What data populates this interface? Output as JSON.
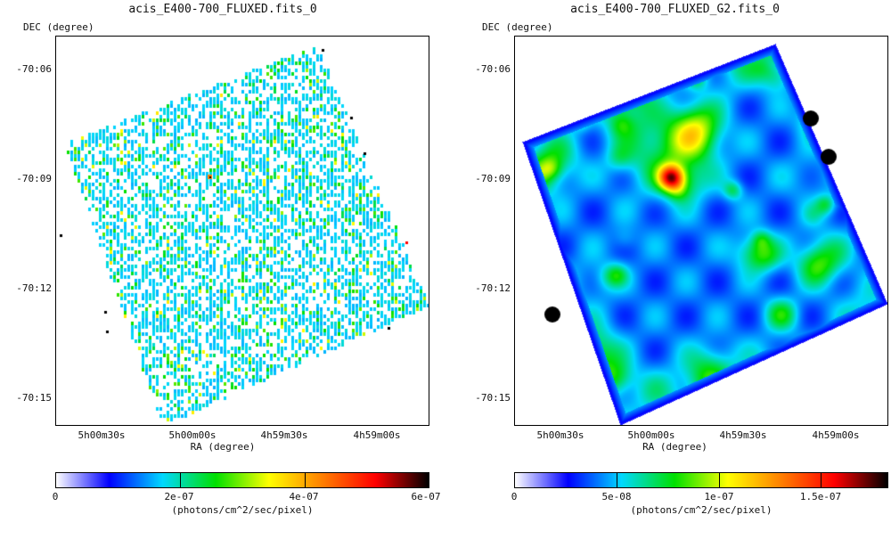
{
  "panels": [
    {
      "title": "acis_E400-700_FLUXED.fits_0",
      "y_axis_label": "DEC (degree)",
      "x_axis_label": "RA (degree)",
      "y_ticks": [
        "-70:06",
        "-70:09",
        "-70:12",
        "-70:15"
      ],
      "x_ticks": [
        "5h00m30s",
        "5h00m00s",
        "4h59m30s",
        "4h59m00s"
      ],
      "colorbar_ticks": [
        "0",
        "2e-07",
        "4e-07",
        "6e-07"
      ],
      "colorbar_unit": "(photons/cm^2/sec/pixel)",
      "image_style": "sparse pixel map"
    },
    {
      "title": "acis_E400-700_FLUXED_G2.fits_0",
      "y_axis_label": "DEC (degree)",
      "x_axis_label": "RA (degree)",
      "y_ticks": [
        "-70:06",
        "-70:09",
        "-70:12",
        "-70:15"
      ],
      "x_ticks": [
        "5h00m30s",
        "5h00m00s",
        "4h59m30s",
        "4h59m00s"
      ],
      "colorbar_ticks": [
        "0",
        "5e-08",
        "1e-07",
        "1.5e-07"
      ],
      "colorbar_unit": "(photons/cm^2/sec/pixel)",
      "image_style": "smoothed map"
    }
  ],
  "colormap": [
    "#ffffff",
    "#0000ff",
    "#00d8ff",
    "#00e000",
    "#ffff00",
    "#ff7f00",
    "#ff0000",
    "#000000"
  ]
}
